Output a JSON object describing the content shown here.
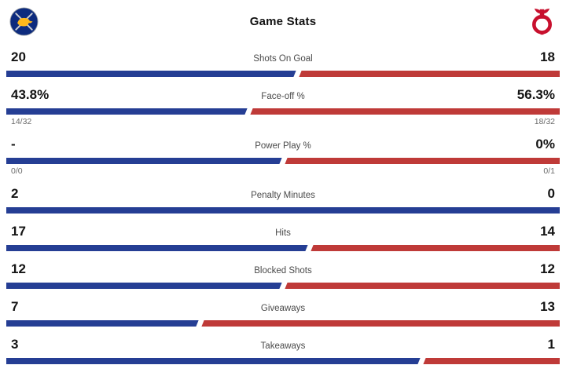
{
  "header": {
    "title": "Game Stats",
    "home_team": "Buffalo Sabres",
    "away_team": "New Jersey Devils"
  },
  "colors": {
    "home": "#253e94",
    "away": "#bf3a38",
    "home_logo_bg": "#0d2b7e",
    "home_logo_accent": "#ffb81c",
    "away_logo": "#c8102e"
  },
  "chart_data": {
    "type": "bar",
    "title": "Game Stats",
    "legend": [
      "Buffalo Sabres",
      "New Jersey Devils"
    ],
    "rows": [
      {
        "label": "Shots On Goal",
        "home": "20",
        "away": "18",
        "home_pct": 52.6
      },
      {
        "label": "Face-off %",
        "home": "43.8%",
        "away": "56.3%",
        "home_sub": "14/32",
        "away_sub": "18/32",
        "home_pct": 43.8
      },
      {
        "label": "Power Play %",
        "home": "-",
        "away": "0%",
        "home_sub": "0/0",
        "away_sub": "0/1",
        "home_pct": 50
      },
      {
        "label": "Penalty Minutes",
        "home": "2",
        "away": "0",
        "home_pct": 100
      },
      {
        "label": "Hits",
        "home": "17",
        "away": "14",
        "home_pct": 54.8
      },
      {
        "label": "Blocked Shots",
        "home": "12",
        "away": "12",
        "home_pct": 50
      },
      {
        "label": "Giveaways",
        "home": "7",
        "away": "13",
        "home_pct": 35
      },
      {
        "label": "Takeaways",
        "home": "3",
        "away": "1",
        "home_pct": 75
      }
    ]
  }
}
